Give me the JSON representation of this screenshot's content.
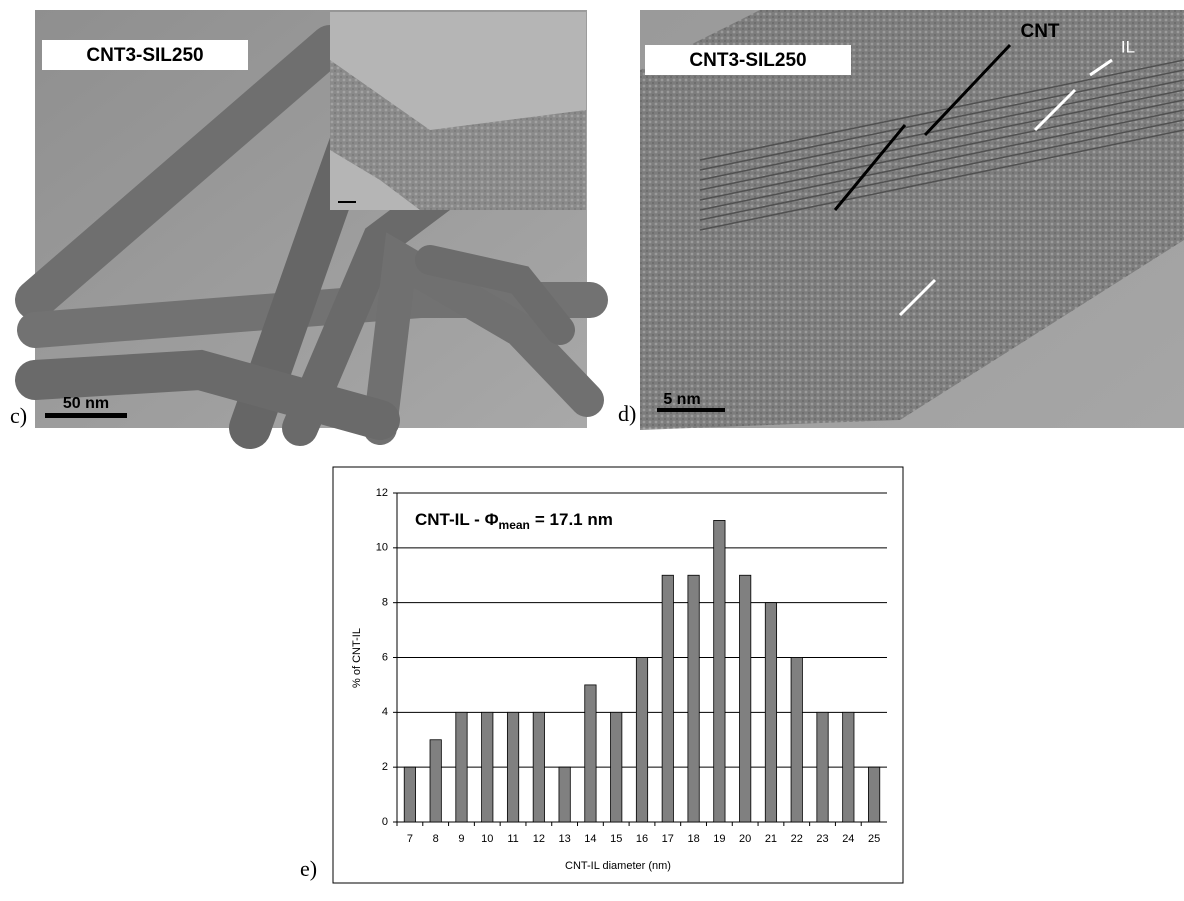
{
  "panels": {
    "c": {
      "letter": "c)",
      "sample": "CNT3-SIL250",
      "scale": "50 nm"
    },
    "d": {
      "letter": "d)",
      "sample": "CNT3-SIL250",
      "scale": "5 nm",
      "arrow_cnt": "CNT",
      "arrow_il": "IL"
    },
    "e": {
      "letter": "e)"
    }
  },
  "chart_data": {
    "type": "bar",
    "title": "CNT-IL - Φ",
    "title_subscript": "mean",
    "title_suffix": "= 17.1 nm",
    "x_label": "CNT-IL diameter (nm)",
    "y_label": "% of CNT-IL",
    "categories": [
      "7",
      "8",
      "9",
      "10",
      "11",
      "12",
      "13",
      "14",
      "15",
      "16",
      "17",
      "18",
      "19",
      "20",
      "21",
      "22",
      "23",
      "24",
      "25"
    ],
    "values": [
      2,
      3,
      4,
      4,
      4,
      4,
      2,
      5,
      4,
      6,
      9,
      9,
      11,
      9,
      8,
      6,
      4,
      4,
      2
    ],
    "color": "#808080",
    "ylim": [
      0,
      12
    ],
    "yticks": [
      0,
      2,
      4,
      6,
      8,
      10,
      12
    ],
    "grid": true
  }
}
